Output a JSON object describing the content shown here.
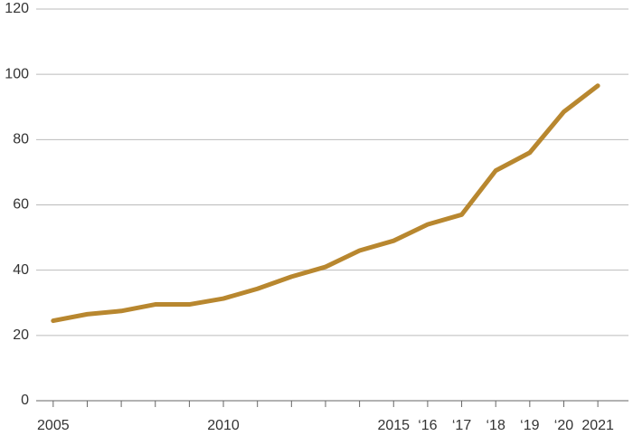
{
  "chart_data": {
    "type": "line",
    "x": [
      2005,
      2006,
      2007,
      2008,
      2009,
      2010,
      2011,
      2012,
      2013,
      2014,
      2015,
      2016,
      2017,
      2018,
      2019,
      2020,
      2021
    ],
    "series": [
      {
        "color": "#b8872f",
        "values": [
          24.5,
          26.5,
          27.5,
          29.5,
          29.5,
          31.3,
          34.3,
          38,
          41,
          46,
          49,
          54,
          57,
          70.5,
          76,
          88.5,
          96.5
        ]
      }
    ],
    "xlim": [
      2004.5,
      2021.9
    ],
    "xticks": [
      2005,
      2010,
      2015,
      {
        "value": 2016,
        "label": "‘16"
      },
      {
        "value": 2017,
        "label": "‘17"
      },
      {
        "value": 2018,
        "label": "‘18"
      },
      {
        "value": 2019,
        "label": "‘19"
      },
      {
        "value": 2020,
        "label": "‘20"
      },
      2021
    ],
    "xminorticks": [
      2006,
      2007,
      2008,
      2009,
      2011,
      2012,
      2013,
      2014
    ],
    "ylim": [
      0,
      120
    ],
    "yticks": [
      0,
      20,
      40,
      60,
      80,
      100,
      120
    ],
    "grid": true
  }
}
